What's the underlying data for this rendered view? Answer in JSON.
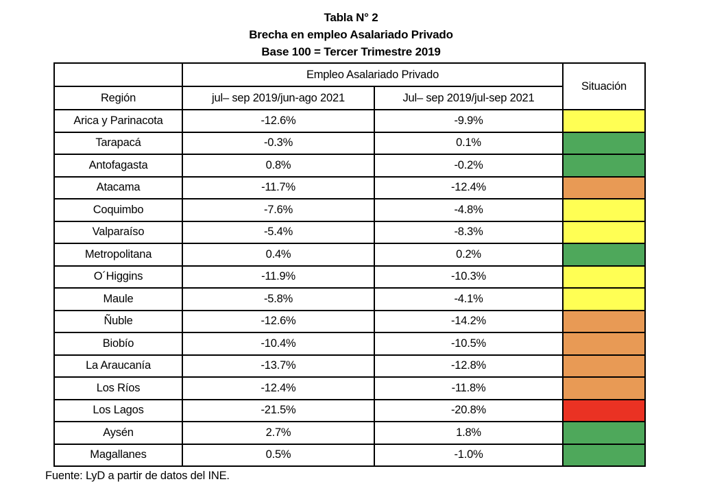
{
  "title": {
    "line1": "Tabla N° 2",
    "line2": "Brecha en empleo Asalariado Privado",
    "line3": "Base 100 = Tercer Trimestre 2019"
  },
  "chart_data": {
    "type": "table",
    "title": "Tabla N° 2 — Brecha en empleo Asalariado Privado",
    "subtitle": "Base 100 = Tercer Trimestre 2019",
    "group_header": "Empleo Asalariado Privado",
    "columns": [
      "Región",
      "jul– sep 2019/jun-ago 2021",
      "Jul– sep 2019/jul-sep 2021",
      "Situación"
    ],
    "rows": [
      {
        "region": "Arica y Parinacota",
        "values": [
          "-12.6%",
          "-9.9%"
        ],
        "situacion": "yellow"
      },
      {
        "region": "Tarapacá",
        "values": [
          "-0.3%",
          "0.1%"
        ],
        "situacion": "green"
      },
      {
        "region": "Antofagasta",
        "values": [
          "0.8%",
          "-0.2%"
        ],
        "situacion": "green"
      },
      {
        "region": "Atacama",
        "values": [
          "-11.7%",
          "-12.4%"
        ],
        "situacion": "orange"
      },
      {
        "region": "Coquimbo",
        "values": [
          "-7.6%",
          "-4.8%"
        ],
        "situacion": "yellow"
      },
      {
        "region": "Valparaíso",
        "values": [
          "-5.4%",
          "-8.3%"
        ],
        "situacion": "yellow"
      },
      {
        "region": "Metropolitana",
        "values": [
          "0.4%",
          "0.2%"
        ],
        "situacion": "green"
      },
      {
        "region": "O´Higgins",
        "values": [
          "-11.9%",
          "-10.3%"
        ],
        "situacion": "yellow"
      },
      {
        "region": "Maule",
        "values": [
          "-5.8%",
          "-4.1%"
        ],
        "situacion": "yellow"
      },
      {
        "region": "Ñuble",
        "values": [
          "-12.6%",
          "-14.2%"
        ],
        "situacion": "orange"
      },
      {
        "region": "Biobío",
        "values": [
          "-10.4%",
          "-10.5%"
        ],
        "situacion": "orange"
      },
      {
        "region": "La Araucanía",
        "values": [
          "-13.7%",
          "-12.8%"
        ],
        "situacion": "orange"
      },
      {
        "region": "Los Ríos",
        "values": [
          "-12.4%",
          "-11.8%"
        ],
        "situacion": "orange"
      },
      {
        "region": "Los Lagos",
        "values": [
          "-21.5%",
          "-20.8%"
        ],
        "situacion": "red"
      },
      {
        "region": "Aysén",
        "values": [
          "2.7%",
          "1.8%"
        ],
        "situacion": "green"
      },
      {
        "region": "Magallanes",
        "values": [
          "0.5%",
          "-1.0%"
        ],
        "situacion": "green"
      }
    ]
  },
  "footer": {
    "source": "Fuente: LyD a partir de datos del INE."
  },
  "colors": {
    "yellow": "#FFFF54",
    "green": "#4EA85B",
    "orange": "#E89A55",
    "red": "#EA3223",
    "border": "#000000"
  }
}
